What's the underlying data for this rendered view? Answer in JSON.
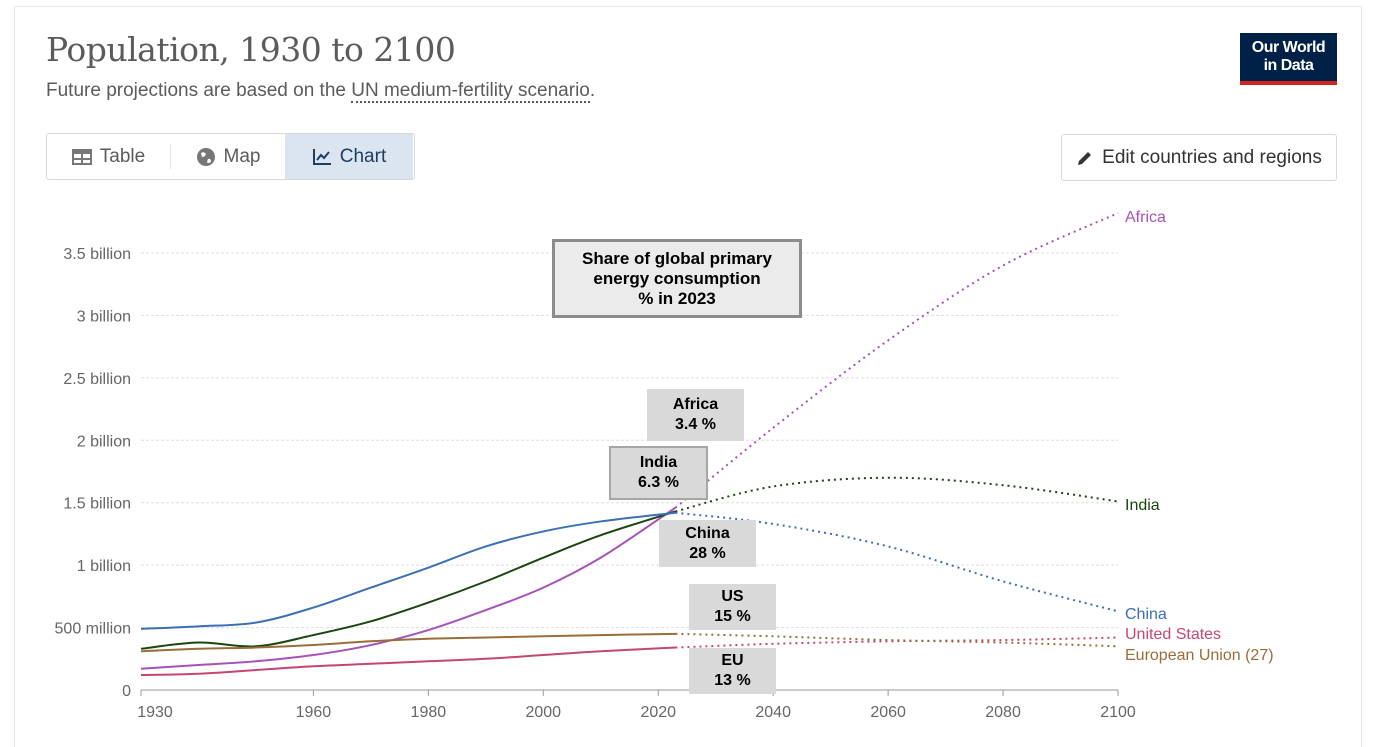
{
  "header": {
    "title": "Population, 1930 to 2100",
    "subtitle_prefix": "Future projections are based on the ",
    "subtitle_link": "UN medium-fertility scenario",
    "subtitle_suffix": ".",
    "logo_line1": "Our World",
    "logo_line2": "in Data"
  },
  "tabs": [
    {
      "label": "Table",
      "icon": "table-icon"
    },
    {
      "label": "Map",
      "icon": "globe-icon"
    },
    {
      "label": "Chart",
      "icon": "line-chart-icon",
      "active": true
    }
  ],
  "edit_button": {
    "label": "Edit countries and regions",
    "icon": "pencil-icon"
  },
  "annotations": {
    "heading": [
      "Share of global primary",
      "energy consumption",
      "% in 2023"
    ],
    "africa": [
      "Africa",
      "3.4 %"
    ],
    "india": [
      "India",
      "6.3 %"
    ],
    "china": [
      "China",
      "28 %"
    ],
    "us": [
      "US",
      "15 %"
    ],
    "eu": [
      "EU",
      "13 %"
    ]
  },
  "chart_data": {
    "type": "line",
    "title": "Population, 1930 to 2100",
    "xlim": [
      1930,
      2100
    ],
    "ylim": [
      0,
      3.5
    ],
    "projection_start": 2023,
    "x_ticks": [
      {
        "v": 1930,
        "label": "1930"
      },
      {
        "v": 1960,
        "label": "1960"
      },
      {
        "v": 1980,
        "label": "1980"
      },
      {
        "v": 2000,
        "label": "2000"
      },
      {
        "v": 2020,
        "label": "2020"
      },
      {
        "v": 2040,
        "label": "2040"
      },
      {
        "v": 2060,
        "label": "2060"
      },
      {
        "v": 2080,
        "label": "2080"
      },
      {
        "v": 2100,
        "label": "2100"
      }
    ],
    "y_ticks": [
      {
        "v": 0,
        "label": "0"
      },
      {
        "v": 0.5,
        "label": "500 million"
      },
      {
        "v": 1,
        "label": "1 billion"
      },
      {
        "v": 1.5,
        "label": "1.5 billion"
      },
      {
        "v": 2,
        "label": "2 billion"
      },
      {
        "v": 2.5,
        "label": "2.5 billion"
      },
      {
        "v": 3,
        "label": "3 billion"
      },
      {
        "v": 3.5,
        "label": "3.5 billion"
      }
    ],
    "units": "billion",
    "x": [
      1930,
      1940,
      1950,
      1960,
      1970,
      1980,
      1990,
      2000,
      2010,
      2023,
      2040,
      2060,
      2080,
      2100
    ],
    "series": [
      {
        "name": "Africa",
        "color": "#a652ba",
        "values": [
          0.17,
          0.2,
          0.23,
          0.28,
          0.36,
          0.48,
          0.64,
          0.82,
          1.06,
          1.46,
          2.1,
          2.8,
          3.4,
          3.82
        ]
      },
      {
        "name": "India",
        "color": "#1b4611",
        "values": [
          0.33,
          0.38,
          0.35,
          0.44,
          0.55,
          0.7,
          0.87,
          1.06,
          1.24,
          1.43,
          1.63,
          1.7,
          1.64,
          1.51
        ]
      },
      {
        "name": "China",
        "color": "#3c70b4",
        "values": [
          0.49,
          0.51,
          0.54,
          0.66,
          0.82,
          0.98,
          1.15,
          1.27,
          1.35,
          1.42,
          1.33,
          1.15,
          0.87,
          0.63
        ]
      },
      {
        "name": "United States",
        "color": "#c64574",
        "values": [
          0.12,
          0.13,
          0.16,
          0.19,
          0.21,
          0.23,
          0.25,
          0.28,
          0.31,
          0.34,
          0.37,
          0.39,
          0.4,
          0.42
        ]
      },
      {
        "name": "European Union (27)",
        "color": "#996d39",
        "values": [
          0.31,
          0.33,
          0.34,
          0.36,
          0.39,
          0.41,
          0.42,
          0.43,
          0.44,
          0.45,
          0.43,
          0.4,
          0.38,
          0.35
        ]
      }
    ]
  }
}
